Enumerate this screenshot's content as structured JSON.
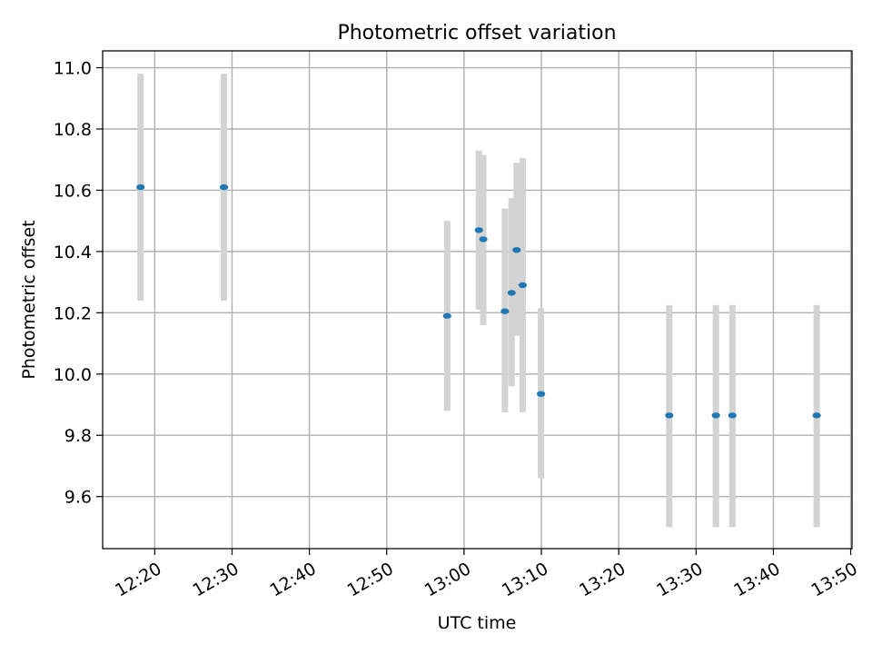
{
  "chart_data": {
    "type": "scatter",
    "title": "Photometric offset variation",
    "xlabel": "UTC time",
    "ylabel": "Photometric offset",
    "x_axis": {
      "kind": "time",
      "ticks": [
        "12:20",
        "12:30",
        "12:40",
        "12:50",
        "13:00",
        "13:10",
        "13:20",
        "13:30",
        "13:40",
        "13:50"
      ],
      "range": [
        "12:13:16",
        "13:50:10"
      ]
    },
    "y_axis": {
      "range": [
        9.43,
        11.055
      ],
      "ticks": [
        "9.6",
        "9.8",
        "10.0",
        "10.2",
        "10.4",
        "10.6",
        "10.8",
        "11.0"
      ]
    },
    "grid": true,
    "series": [
      {
        "points": [
          {
            "x": "12:18:10",
            "y": 10.61,
            "err_low": 10.24,
            "err_high": 10.98
          },
          {
            "x": "12:28:57",
            "y": 10.61,
            "err_low": 10.24,
            "err_high": 10.98
          },
          {
            "x": "12:57:49",
            "y": 10.19,
            "err_low": 9.88,
            "err_high": 10.5
          },
          {
            "x": "13:01:55",
            "y": 10.47,
            "err_low": 10.21,
            "err_high": 10.73
          },
          {
            "x": "13:02:29",
            "y": 10.44,
            "err_low": 10.16,
            "err_high": 10.715
          },
          {
            "x": "13:05:17",
            "y": 10.205,
            "err_low": 9.875,
            "err_high": 10.54
          },
          {
            "x": "13:06:09",
            "y": 10.265,
            "err_low": 9.96,
            "err_high": 10.575
          },
          {
            "x": "13:06:48",
            "y": 10.405,
            "err_low": 10.125,
            "err_high": 10.69
          },
          {
            "x": "13:07:35",
            "y": 10.29,
            "err_low": 9.875,
            "err_high": 10.705
          },
          {
            "x": "13:09:57",
            "y": 9.935,
            "err_low": 9.66,
            "err_high": 10.215
          },
          {
            "x": "13:26:32",
            "y": 9.865,
            "err_low": 9.5,
            "err_high": 10.225
          },
          {
            "x": "13:32:34",
            "y": 9.865,
            "err_low": 9.5,
            "err_high": 10.225
          },
          {
            "x": "13:34:42",
            "y": 9.865,
            "err_low": 9.5,
            "err_high": 10.225
          },
          {
            "x": "13:45:36",
            "y": 9.865,
            "err_low": 9.5,
            "err_high": 10.225
          }
        ]
      }
    ],
    "colors": {
      "marker": "#1f77b4",
      "errorbar": "#d3d3d3",
      "grid": "#b0b0b0",
      "axes": "#000000"
    }
  }
}
